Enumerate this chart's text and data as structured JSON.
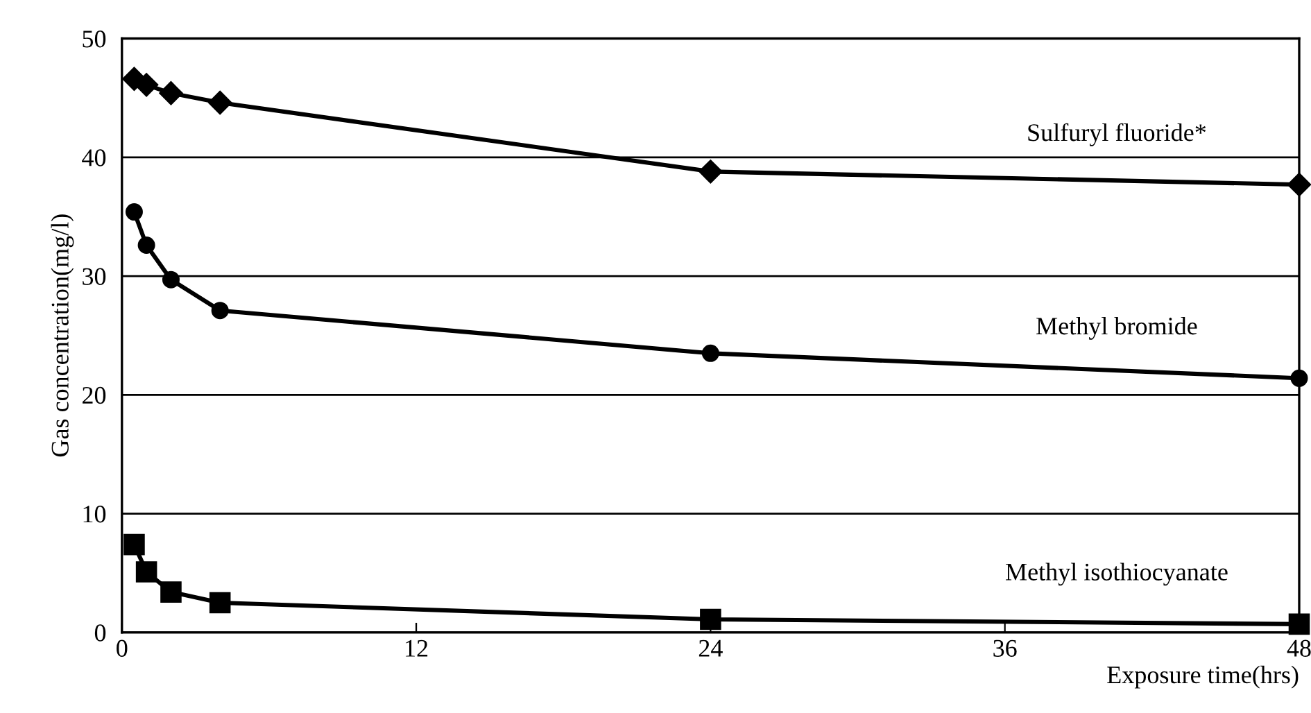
{
  "chart_data": {
    "type": "line",
    "xlabel": "Exposure time(hrs)",
    "ylabel": "Gas concentration(mg/l)",
    "x": [
      0.5,
      1,
      2,
      4,
      24,
      48
    ],
    "series": [
      {
        "name": "Sulfuryl fluoride*",
        "color": "#000000",
        "marker": "diamond",
        "values": [
          46.6,
          46.1,
          45.4,
          44.6,
          38.8,
          37.7
        ]
      },
      {
        "name": "Methyl bromide",
        "color": "#000000",
        "marker": "circle",
        "values": [
          35.4,
          32.6,
          29.7,
          27.1,
          23.5,
          21.4
        ]
      },
      {
        "name": "Methyl isothiocyanate",
        "color": "#000000",
        "marker": "square",
        "values": [
          7.4,
          5.1,
          3.4,
          2.5,
          1.1,
          0.7
        ]
      }
    ],
    "xlim": [
      0,
      48
    ],
    "xticks": [
      0,
      12,
      24,
      36,
      48
    ],
    "ylim": [
      0,
      50
    ],
    "yticks": [
      0,
      10,
      20,
      30,
      40,
      50
    ],
    "grid": "y",
    "legend": false,
    "line_style": "solid"
  }
}
